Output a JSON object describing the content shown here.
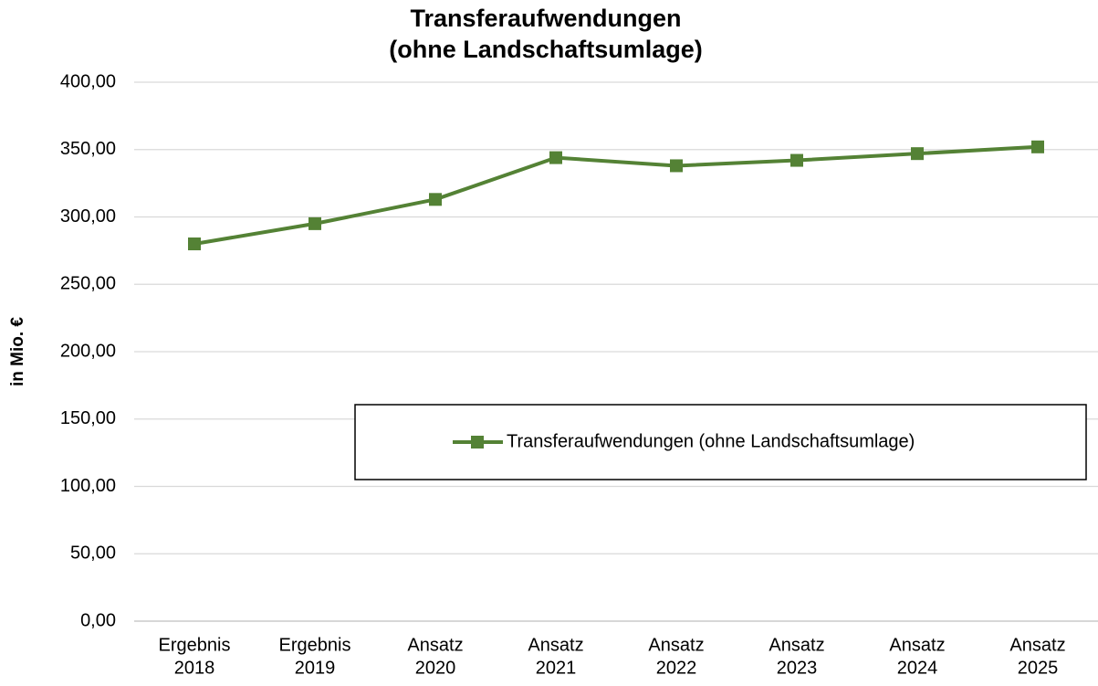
{
  "chart_data": {
    "type": "line",
    "title": [
      "Transferaufwendungen",
      "(ohne Landschaftsumlage)"
    ],
    "ylabel": "in Mio. €",
    "categories": [
      [
        "Ergebnis",
        "2018"
      ],
      [
        "Ergebnis",
        "2019"
      ],
      [
        "Ansatz",
        "2020"
      ],
      [
        "Ansatz",
        "2021"
      ],
      [
        "Ansatz",
        "2022"
      ],
      [
        "Ansatz",
        "2023"
      ],
      [
        "Ansatz",
        "2024"
      ],
      [
        "Ansatz",
        "2025"
      ]
    ],
    "series": [
      {
        "name": "Transferaufwendungen (ohne Landschaftsumlage)",
        "color": "#548235",
        "values": [
          280,
          295,
          313,
          344,
          338,
          342,
          347,
          352
        ]
      }
    ],
    "ylim": [
      0,
      400
    ],
    "yticks": [
      {
        "value": 0,
        "label": "0,00"
      },
      {
        "value": 50,
        "label": "50,00"
      },
      {
        "value": 100,
        "label": "100,00"
      },
      {
        "value": 150,
        "label": "150,00"
      },
      {
        "value": 200,
        "label": "200,00"
      },
      {
        "value": 250,
        "label": "250,00"
      },
      {
        "value": 300,
        "label": "300,00"
      },
      {
        "value": 350,
        "label": "350,00"
      },
      {
        "value": 400,
        "label": "400,00"
      }
    ],
    "grid": true,
    "legend": "right",
    "marker": "square"
  }
}
